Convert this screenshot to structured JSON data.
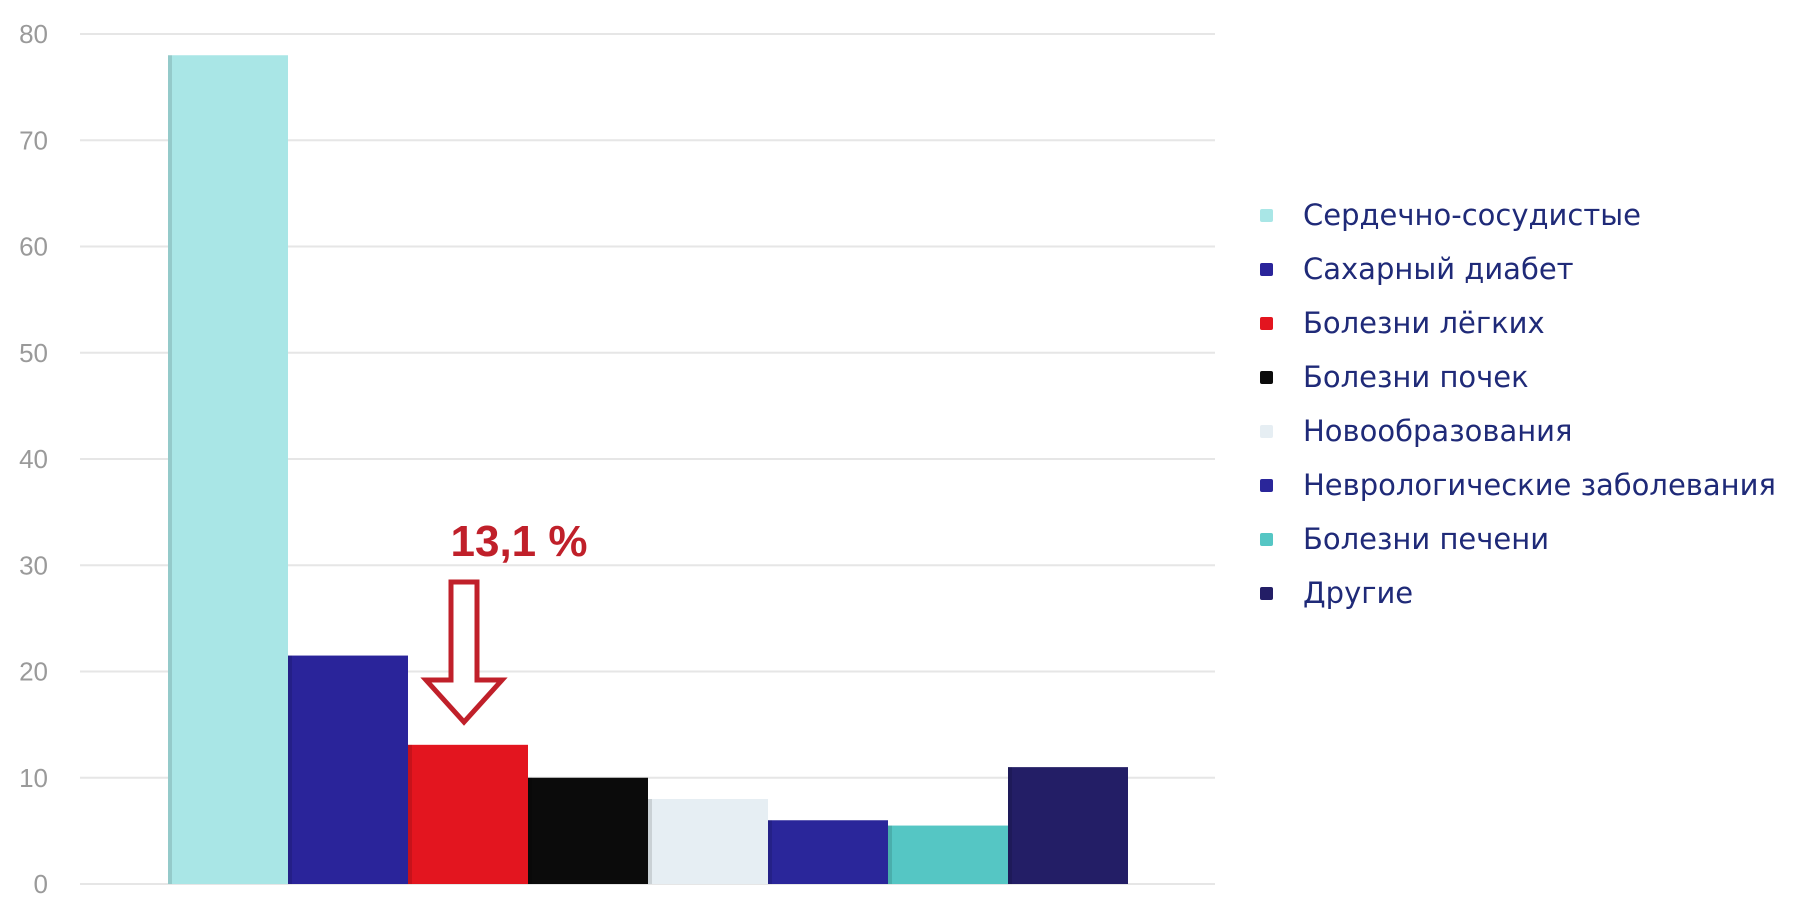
{
  "chart_data": {
    "type": "bar",
    "categories": [
      "Сердечно-сосудистые",
      "Сахарный диабет",
      "Болезни лёгких",
      "Болезни почек",
      "Новообразования",
      "Неврологические заболевания",
      "Болезни печени",
      "Другие"
    ],
    "values": [
      78,
      21.5,
      13.1,
      10,
      8,
      6,
      5.5,
      11
    ],
    "colors": [
      "#a9e6e6",
      "#2a249a",
      "#e3151f",
      "#0b0b0b",
      "#e6eef3",
      "#2a269a",
      "#55c6c4",
      "#231e66"
    ],
    "legend_labels": [
      "Сердечно-сосудистые",
      "Сахарный диабет",
      "Болезни лёгких",
      "Болезни почек",
      "Новообразования",
      "Неврологические заболевания",
      "Болезни печени",
      "Другие"
    ],
    "y_ticks": [
      "0",
      "10",
      "20",
      "30",
      "40",
      "50",
      "60",
      "70",
      "80"
    ],
    "ylim": [
      0,
      80
    ],
    "grid": true,
    "legend_position": "right",
    "annotation": {
      "text": "13,1 %",
      "category": "Болезни лёгких",
      "color": "#c0202a",
      "icon": "down-arrow-icon"
    }
  }
}
